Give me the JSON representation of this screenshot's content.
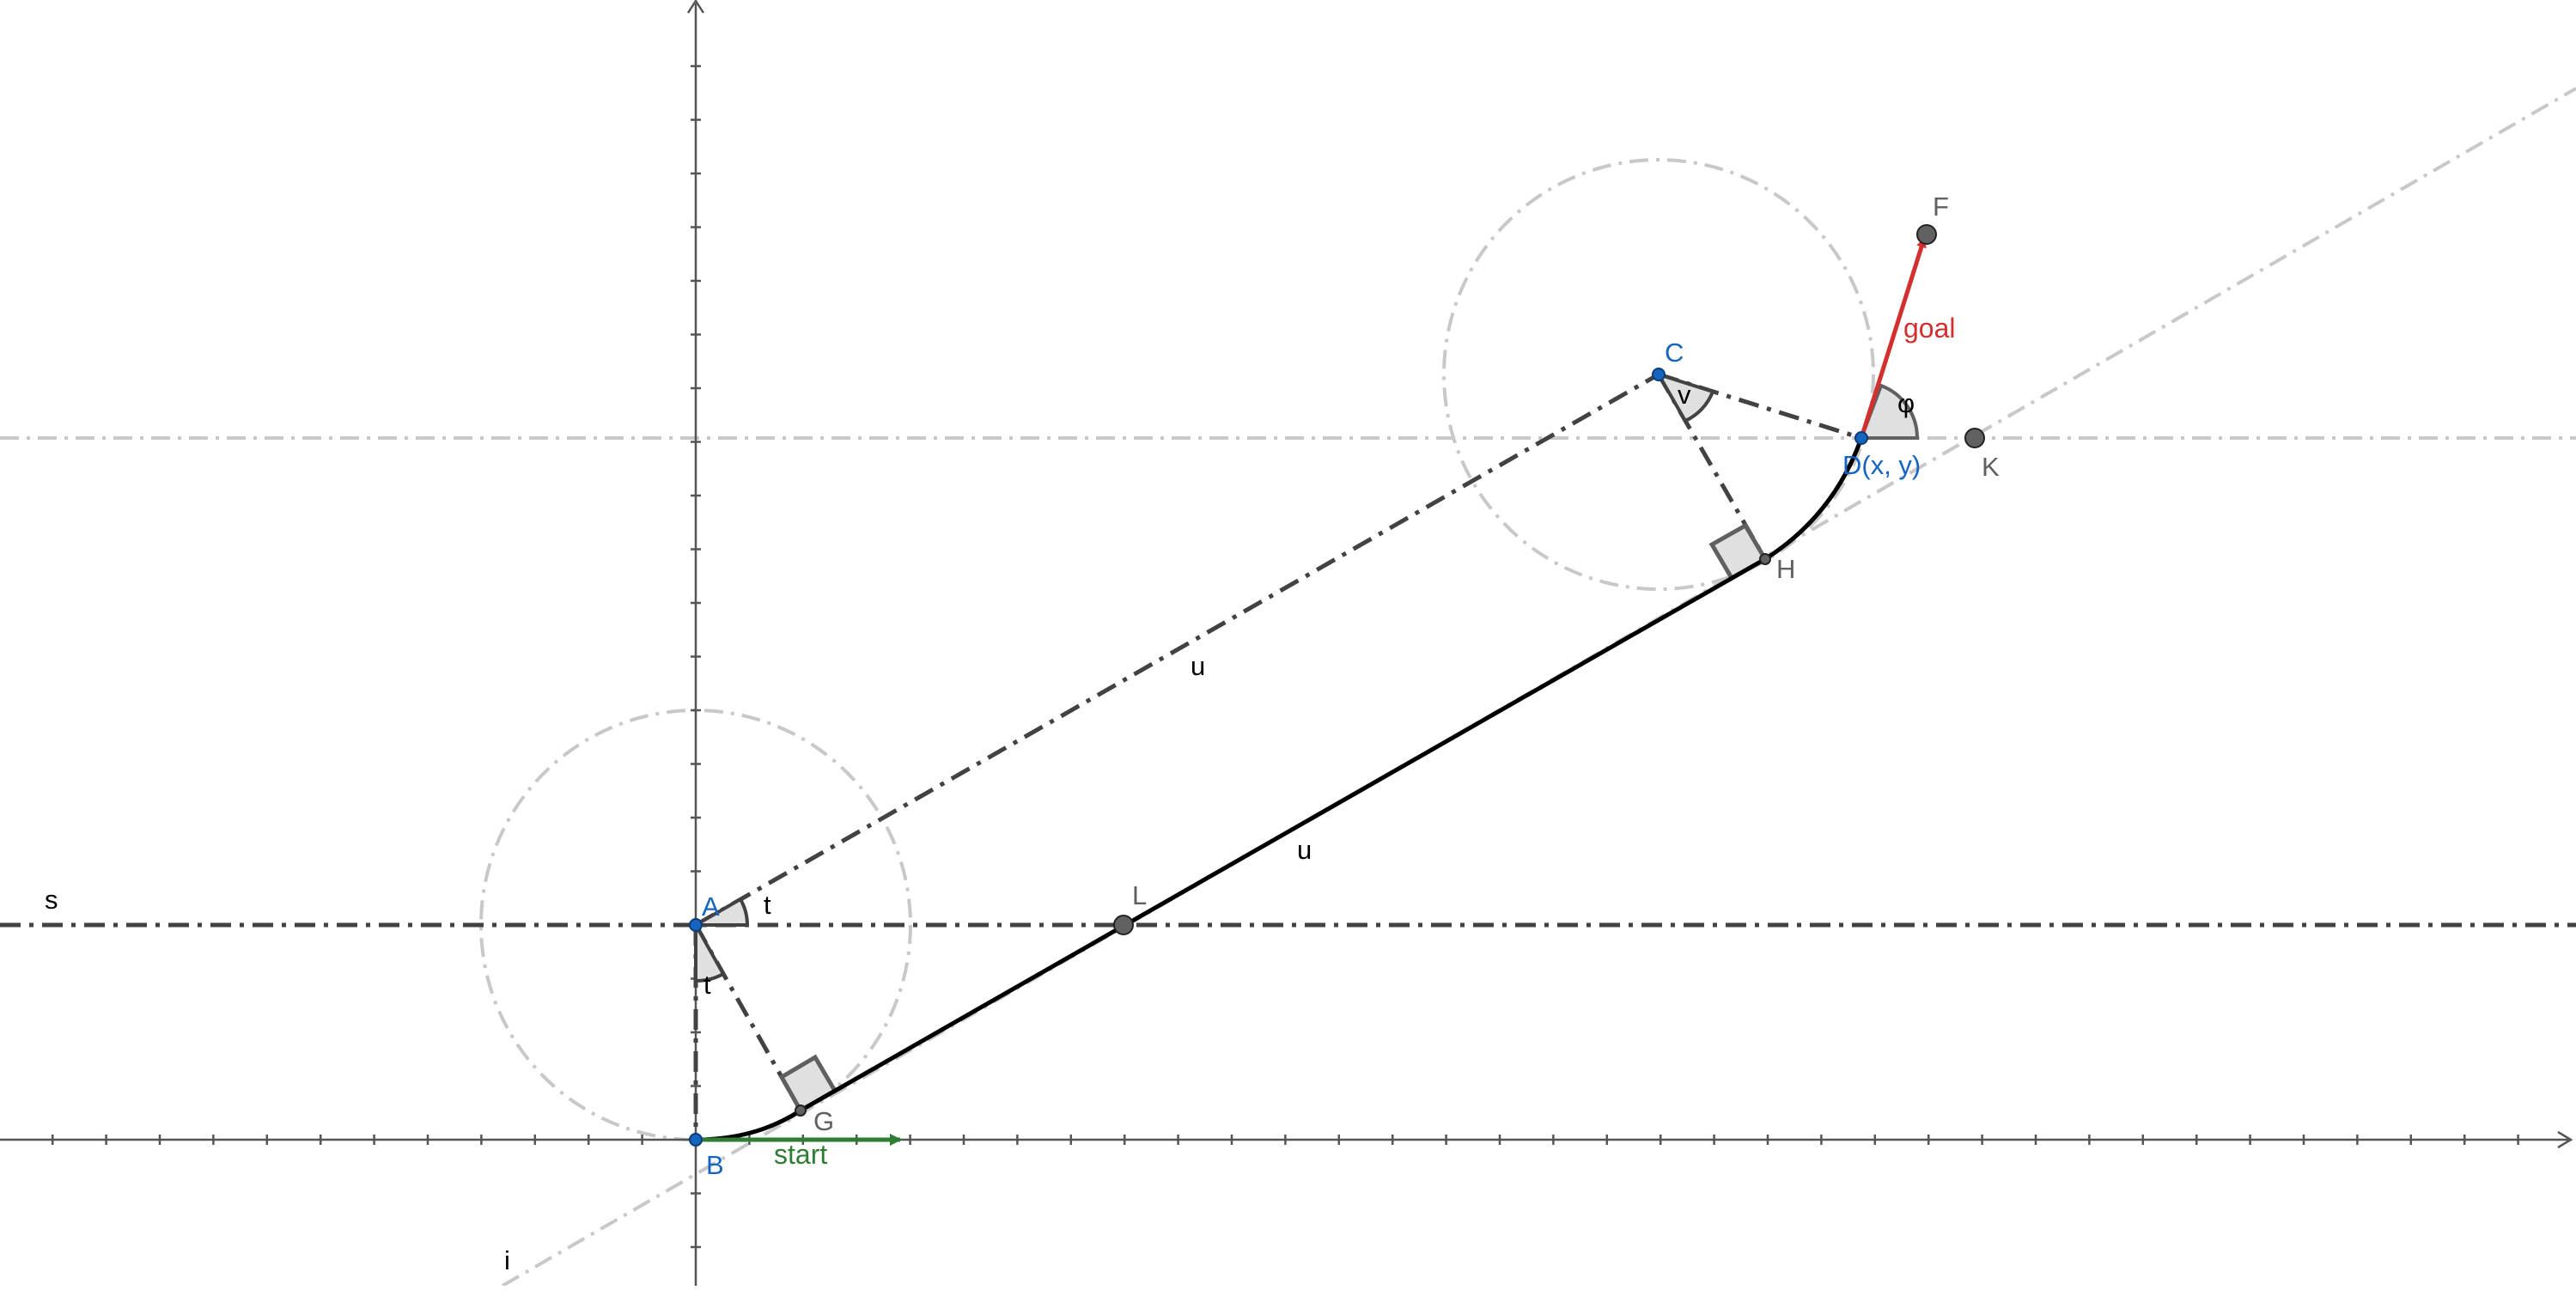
{
  "points": {
    "A": "A",
    "B": "B",
    "C": "C",
    "D": "D(x, y)",
    "F": "F",
    "G": "G",
    "H": "H",
    "K": "K",
    "L": "L"
  },
  "lines": {
    "s": "s",
    "i": "i"
  },
  "angles": {
    "t_top": "t",
    "t_bottom": "t",
    "v": "v",
    "phi": "φ"
  },
  "segments": {
    "u_upper": "u",
    "u_lower": "u"
  },
  "vectors": {
    "goal": "goal",
    "start": "start"
  },
  "colors": {
    "point_blue": "#1565c0",
    "point_grey": "#616161",
    "goal_red": "#d32f2f",
    "start_green": "#2e7d32",
    "helper_grey": "#c8c8c8",
    "dark_line": "#424242"
  }
}
